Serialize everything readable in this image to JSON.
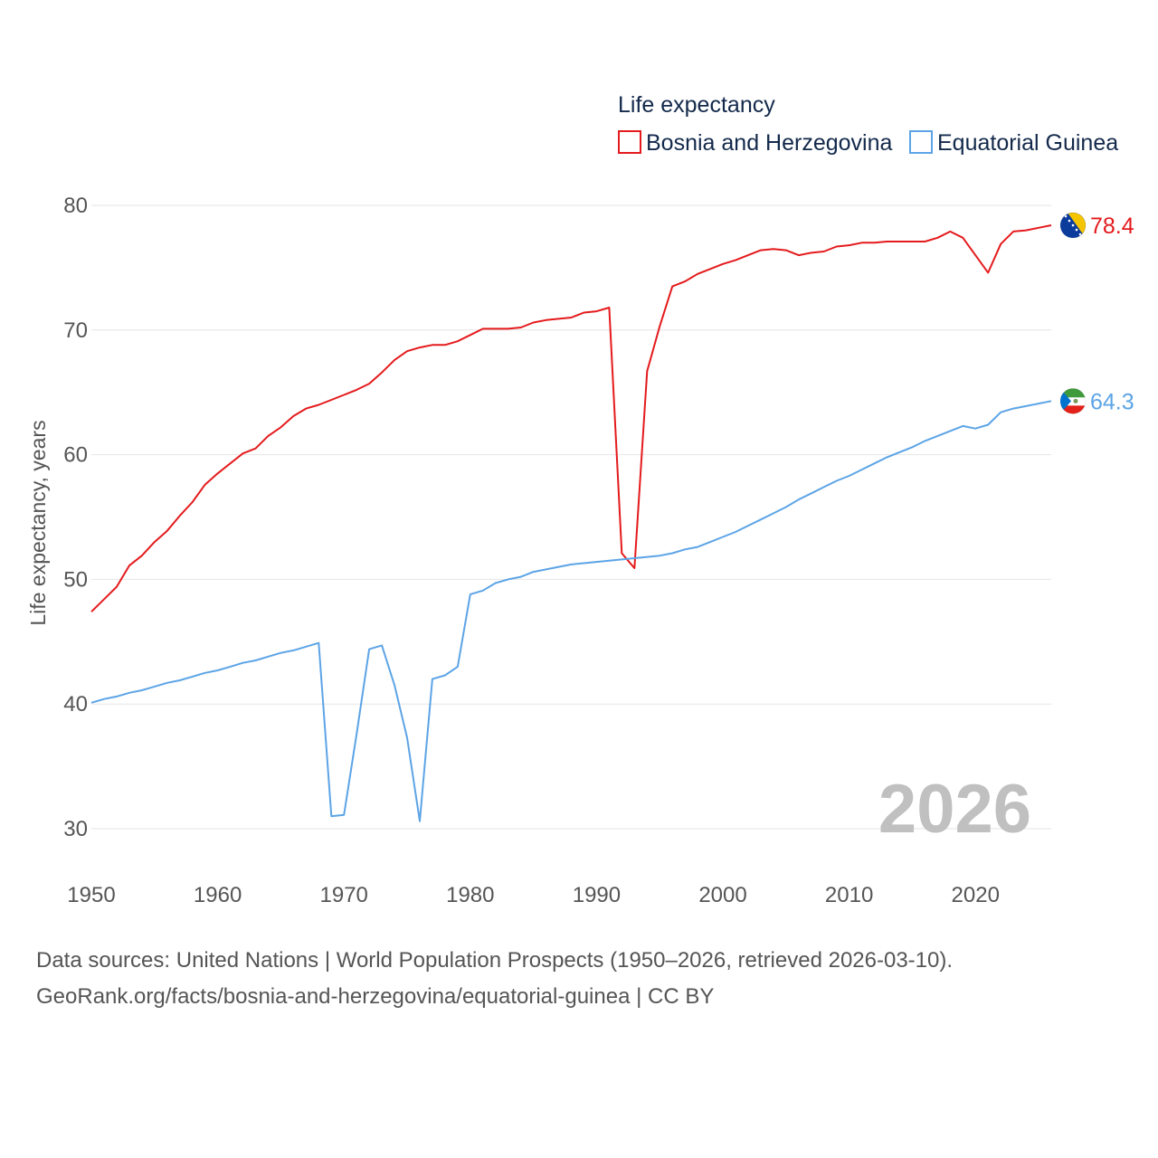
{
  "chart_data": {
    "type": "line",
    "legend_title": "Life expectancy",
    "ylabel": "Life expectancy, years",
    "xlabel": "",
    "year_stamp": "2026",
    "xlim": [
      1950,
      2026
    ],
    "ylim": [
      30,
      80
    ],
    "x_ticks": [
      "1950",
      "1960",
      "1970",
      "1980",
      "1990",
      "2000",
      "2010",
      "2020"
    ],
    "y_ticks": [
      "80",
      "70",
      "60",
      "50",
      "40",
      "30"
    ],
    "grid": true,
    "legend_position": "top-right",
    "x": [
      1950,
      1951,
      1952,
      1953,
      1954,
      1955,
      1956,
      1957,
      1958,
      1959,
      1960,
      1961,
      1962,
      1963,
      1964,
      1965,
      1966,
      1967,
      1968,
      1969,
      1970,
      1971,
      1972,
      1973,
      1974,
      1975,
      1976,
      1977,
      1978,
      1979,
      1980,
      1981,
      1982,
      1983,
      1984,
      1985,
      1986,
      1987,
      1988,
      1989,
      1990,
      1991,
      1992,
      1993,
      1994,
      1995,
      1996,
      1997,
      1998,
      1999,
      2000,
      2001,
      2002,
      2003,
      2004,
      2005,
      2006,
      2007,
      2008,
      2009,
      2010,
      2011,
      2012,
      2013,
      2014,
      2015,
      2016,
      2017,
      2018,
      2019,
      2020,
      2021,
      2022,
      2023,
      2024,
      2025,
      2026
    ],
    "series": [
      {
        "name": "Bosnia and Herzegovina",
        "color": "#e41a1c",
        "end_label": "78.4",
        "flag": "bosnia-and-herzegovina-flag",
        "values": [
          47.4,
          48.4,
          49.4,
          51.1,
          51.9,
          53.0,
          53.9,
          55.1,
          56.2,
          57.6,
          58.5,
          59.3,
          60.1,
          60.5,
          61.5,
          62.2,
          63.1,
          63.7,
          64.0,
          64.4,
          64.8,
          65.2,
          65.7,
          66.6,
          67.6,
          68.3,
          68.6,
          68.8,
          68.8,
          69.1,
          69.6,
          70.1,
          70.1,
          70.1,
          70.2,
          70.6,
          70.8,
          70.9,
          71.0,
          71.4,
          71.5,
          71.8,
          52.1,
          50.9,
          66.7,
          70.3,
          73.5,
          73.9,
          74.5,
          74.9,
          75.3,
          75.6,
          76.0,
          76.4,
          76.5,
          76.4,
          76.0,
          76.2,
          76.3,
          76.7,
          76.8,
          77.0,
          77.0,
          77.1,
          77.1,
          77.1,
          77.1,
          77.4,
          77.9,
          77.4,
          76.0,
          74.6,
          76.9,
          77.9,
          78.0,
          78.2,
          78.4
        ]
      },
      {
        "name": "Equatorial Guinea",
        "color": "#5ca4e6",
        "end_label": "64.3",
        "flag": "equatorial-guinea-flag",
        "values": [
          40.1,
          40.4,
          40.6,
          40.9,
          41.1,
          41.4,
          41.7,
          41.9,
          42.2,
          42.5,
          42.7,
          43.0,
          43.3,
          43.5,
          43.8,
          44.1,
          44.3,
          44.6,
          44.9,
          31.0,
          31.1,
          37.6,
          44.4,
          44.7,
          41.5,
          37.3,
          30.6,
          42.0,
          42.3,
          43.0,
          48.8,
          49.1,
          49.7,
          50.0,
          50.2,
          50.6,
          50.8,
          51.0,
          51.2,
          51.3,
          51.4,
          51.5,
          51.6,
          51.7,
          51.8,
          51.9,
          52.1,
          52.4,
          52.6,
          53.0,
          53.4,
          53.8,
          54.3,
          54.8,
          55.3,
          55.8,
          56.4,
          56.9,
          57.4,
          57.9,
          58.3,
          58.8,
          59.3,
          59.8,
          60.2,
          60.6,
          61.1,
          61.5,
          61.9,
          62.3,
          62.1,
          62.4,
          63.4,
          63.7,
          63.9,
          64.1,
          64.3
        ]
      }
    ]
  },
  "footer": {
    "sources": "Data sources: United Nations | World Population Prospects (1950–2026, retrieved 2026-03-10).",
    "attribution": "GeoRank.org/facts/bosnia-and-herzegovina/equatorial-guinea | CC BY"
  }
}
